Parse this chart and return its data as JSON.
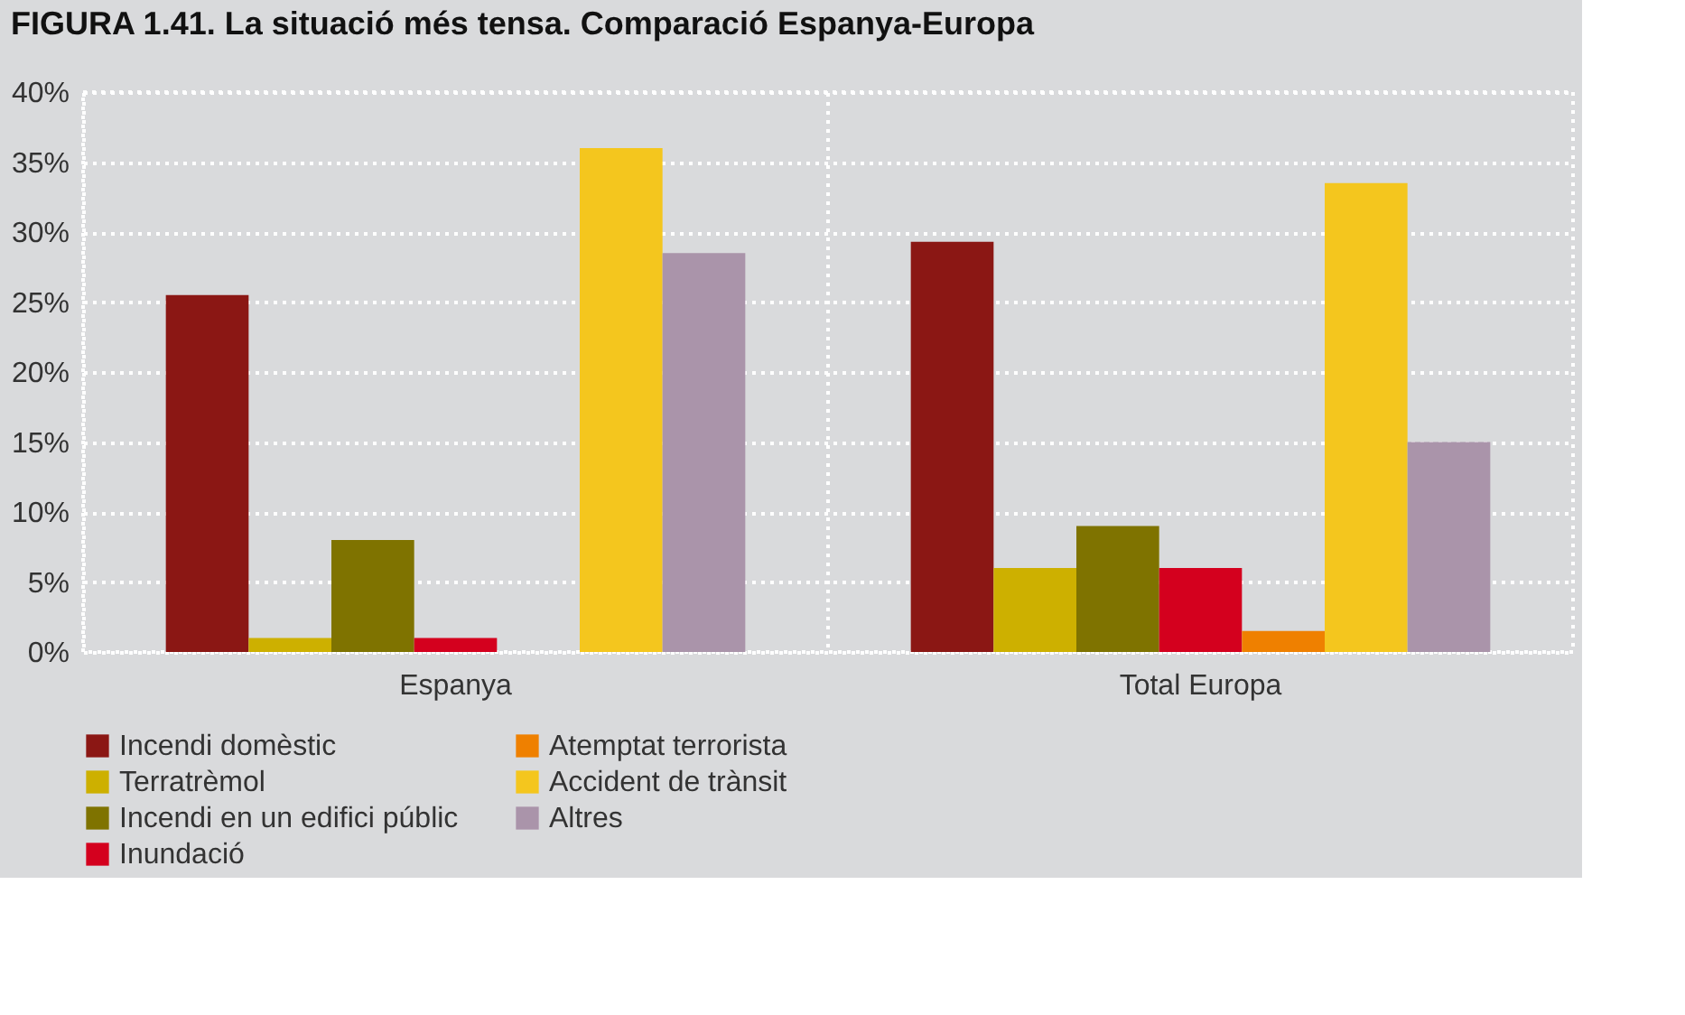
{
  "chart_data": {
    "type": "bar",
    "title": "FIGURA 1.41. La situació més tensa. Comparació Espanya-Europa",
    "categories": [
      "Espanya",
      "Total Europa"
    ],
    "series": [
      {
        "name": "Incendi domèstic",
        "color": "#8b1714",
        "values": [
          25.5,
          29.3
        ]
      },
      {
        "name": "Terratrèmol",
        "color": "#cdb000",
        "values": [
          1,
          6
        ]
      },
      {
        "name": "Incendi en un edifici públic",
        "color": "#7f7300",
        "values": [
          8,
          9
        ]
      },
      {
        "name": "Inundació",
        "color": "#d4001e",
        "values": [
          1,
          6
        ]
      },
      {
        "name": "Atemptat terrorista",
        "color": "#ef8000",
        "values": [
          0,
          1.5
        ]
      },
      {
        "name": "Accident de trànsit",
        "color": "#f4c61e",
        "values": [
          36,
          33.5
        ]
      },
      {
        "name": "Altres",
        "color": "#aa94aa",
        "values": [
          28.5,
          15
        ]
      }
    ],
    "ylim": [
      0,
      40
    ],
    "yticks": [
      {
        "value": 0,
        "label": "0%"
      },
      {
        "value": 5,
        "label": "5%"
      },
      {
        "value": 10,
        "label": "10%"
      },
      {
        "value": 15,
        "label": "15%"
      },
      {
        "value": 20,
        "label": "20%"
      },
      {
        "value": 25,
        "label": "25%"
      },
      {
        "value": 30,
        "label": "30%"
      },
      {
        "value": 35,
        "label": "35%"
      },
      {
        "value": 40,
        "label": "40%"
      }
    ],
    "grid": true,
    "legend": "bottom"
  }
}
